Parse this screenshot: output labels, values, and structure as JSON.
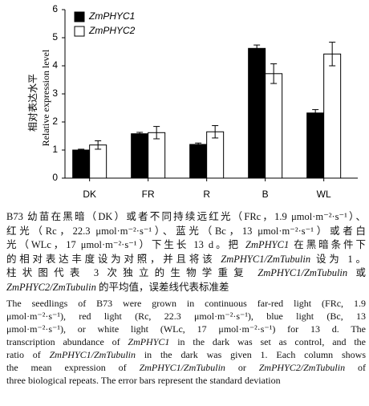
{
  "chart_data": {
    "type": "bar",
    "y_labels": [
      "相对表达水平",
      "Relative expression level"
    ],
    "categories": [
      "DK",
      "FR",
      "R",
      "B",
      "WL"
    ],
    "series": [
      {
        "name": "ZmPHYC1",
        "color": "#000000",
        "values": [
          1.0,
          1.58,
          1.2,
          4.62,
          2.32
        ],
        "errors": [
          0.03,
          0.05,
          0.05,
          0.12,
          0.12
        ]
      },
      {
        "name": "ZmPHYC2",
        "color": "#ffffff",
        "values": [
          1.18,
          1.62,
          1.65,
          3.72,
          4.42
        ],
        "errors": [
          0.15,
          0.22,
          0.22,
          0.35,
          0.42
        ]
      }
    ],
    "ylim": [
      0,
      6
    ],
    "yticks": [
      0,
      1,
      2,
      3,
      4,
      5,
      6
    ],
    "grid": false,
    "legend": "top-left"
  },
  "caption": {
    "zh": [
      [
        "B73 幼苗在黑暗（DK）或者不同持续远红光（FRc，1.9 μmol·m⁻²·s⁻¹）、"
      ],
      [
        "红光（Rc，22.3 μmol·m⁻²·s⁻¹）、蓝光（Bc，13 μmol·m⁻²·s⁻¹）或者白"
      ],
      [
        "光（WLc，17 μmol·m⁻²·s⁻¹）下生长 13 d。把 ",
        {
          "text": "ZmPHYC1",
          "italic": true
        },
        " 在黑暗条件下"
      ],
      [
        "的相对表达丰度设为对照，并且将该 ",
        {
          "text": "ZmPHYC1/ZmTubulin",
          "italic": true
        },
        " 设为 1。"
      ],
      [
        "柱状图代表 3 次独立的生物学重复 ",
        {
          "text": "ZmPHYC1/ZmTubulin",
          "italic": true
        },
        " 或"
      ],
      [
        {
          "text": "ZmPHYC2/ZmTubulin",
          "italic": true
        },
        " 的平均值，误差线代表标准差"
      ]
    ],
    "en": [
      [
        "The seedlings of B73 were grown in continuous far-red light (FRc, 1.9"
      ],
      [
        "μmol·m⁻²·s⁻¹), red light (Rc, 22.3 μmol·m⁻²·s⁻¹), blue light (Bc, 13"
      ],
      [
        "μmol·m⁻²·s⁻¹), or white light (WLc, 17 μmol·m⁻²·s⁻¹) for 13 d. The"
      ],
      [
        "transcription abundance of ",
        {
          "text": "ZmPHYC1",
          "italic": true
        },
        " in the dark was set as control, and the"
      ],
      [
        "ratio of ",
        {
          "text": "ZmPHYC1/ZmTubulin",
          "italic": true
        },
        " in the dark was given 1. Each column shows"
      ],
      [
        "the mean expression of ",
        {
          "text": "ZmPHYC1/ZmTubulin",
          "italic": true
        },
        " or ",
        {
          "text": "ZmPHYC2/ZmTubulin",
          "italic": true
        },
        " of"
      ],
      [
        "three biological repeats. The error bars represent the standard deviation"
      ]
    ]
  }
}
